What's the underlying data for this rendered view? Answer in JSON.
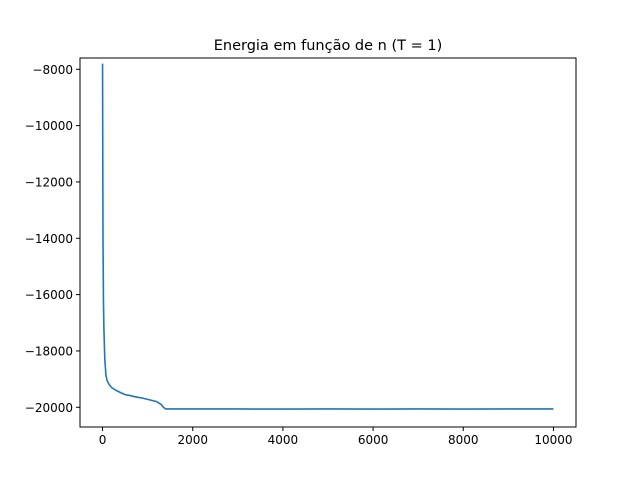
{
  "chart_data": {
    "type": "line",
    "title": "Energia em função de n (T = 1)",
    "xlabel": "",
    "ylabel": "",
    "xlim": [
      -500,
      10500
    ],
    "ylim": [
      -20700,
      -7600
    ],
    "xticks": [
      0,
      2000,
      4000,
      6000,
      8000,
      10000
    ],
    "xtick_labels": [
      "0",
      "2000",
      "4000",
      "6000",
      "8000",
      "10000"
    ],
    "yticks": [
      -8000,
      -10000,
      -12000,
      -14000,
      -16000,
      -18000,
      -20000
    ],
    "ytick_labels": [
      "−8000",
      "−10000",
      "−12000",
      "−14000",
      "−16000",
      "−18000",
      "−20000"
    ],
    "grid": false,
    "legend": "none",
    "series": [
      {
        "color": "#1f77b4",
        "x": [
          0,
          5,
          10,
          20,
          30,
          50,
          75,
          100,
          150,
          200,
          300,
          400,
          500,
          600,
          700,
          800,
          900,
          1000,
          1100,
          1200,
          1300,
          1350,
          1400,
          1450,
          1500,
          2000,
          2500,
          3000,
          4000,
          5000,
          6000,
          7000,
          8000,
          9000,
          10000
        ],
        "y": [
          -7800,
          -11000,
          -14000,
          -16200,
          -17200,
          -18300,
          -18850,
          -19050,
          -19200,
          -19300,
          -19400,
          -19480,
          -19550,
          -19580,
          -19620,
          -19650,
          -19680,
          -19720,
          -19760,
          -19800,
          -19900,
          -20000,
          -20060,
          -20060,
          -20060,
          -20060,
          -20060,
          -20060,
          -20065,
          -20060,
          -20065,
          -20060,
          -20062,
          -20060,
          -20060
        ]
      }
    ]
  }
}
